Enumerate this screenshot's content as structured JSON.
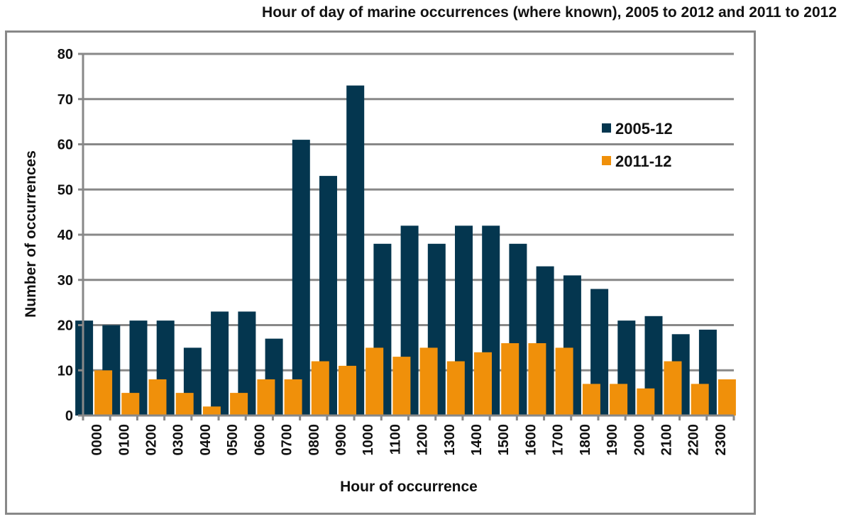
{
  "chart_data": {
    "type": "bar",
    "title": "Hour of day of marine occurrences (where known), 2005 to 2012 and 2011 to 2012",
    "xlabel": "Hour of occurrence",
    "ylabel": "Number of occurrences",
    "ylim": [
      0,
      80
    ],
    "yticks": [
      "0",
      "10",
      "20",
      "30",
      "40",
      "50",
      "60",
      "70",
      "80"
    ],
    "grid": true,
    "legend_position": "top-right",
    "categories": [
      "0000",
      "0100",
      "0200",
      "0300",
      "0400",
      "0500",
      "0600",
      "0700",
      "0800",
      "0900",
      "1000",
      "1100",
      "1200",
      "1300",
      "1400",
      "1500",
      "1600",
      "1700",
      "1800",
      "1900",
      "2000",
      "2100",
      "2200",
      "2300"
    ],
    "series": [
      {
        "name": "2005-12",
        "color": "#04364f",
        "values": [
          21,
          20,
          21,
          21,
          15,
          23,
          23,
          17,
          61,
          53,
          73,
          38,
          42,
          38,
          42,
          42,
          38,
          33,
          31,
          28,
          21,
          22,
          18,
          19
        ]
      },
      {
        "name": "2011-12",
        "color": "#f0900a",
        "values": [
          10,
          5,
          8,
          5,
          2,
          5,
          8,
          8,
          12,
          11,
          15,
          13,
          15,
          12,
          14,
          16,
          16,
          15,
          7,
          7,
          6,
          12,
          7,
          8
        ]
      }
    ]
  }
}
